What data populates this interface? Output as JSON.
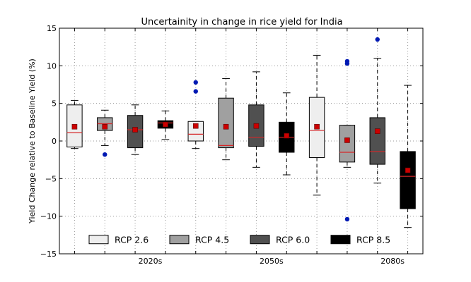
{
  "chart_data": {
    "type": "box",
    "title": "Uncertainity in change in rice yield for India",
    "ylabel": "Yield Change relative to Baseline Yield (%)",
    "ylim": [
      -15,
      15
    ],
    "yticks": [
      -15,
      -10,
      -5,
      0,
      5,
      10,
      15
    ],
    "groups": [
      "2020s",
      "2050s",
      "2080s"
    ],
    "grid": true,
    "legend_position": "bottom",
    "series": [
      {
        "name": "RCP 2.6",
        "color": "#eeeeee"
      },
      {
        "name": "RCP 4.5",
        "color": "#a0a0a0"
      },
      {
        "name": "RCP 6.0",
        "color": "#505050"
      },
      {
        "name": "RCP 8.5",
        "color": "#000000"
      }
    ],
    "boxes": [
      {
        "group": "2020s",
        "series": "RCP 2.6",
        "whislo": -1.0,
        "q1": -0.8,
        "median": 1.1,
        "q3": 4.8,
        "whishi": 5.4,
        "mean": 1.9,
        "fliers": []
      },
      {
        "group": "2020s",
        "series": "RCP 4.5",
        "whislo": -0.6,
        "q1": 1.4,
        "median": 2.3,
        "q3": 3.1,
        "whishi": 4.1,
        "mean": 1.9,
        "fliers": [
          -1.8
        ]
      },
      {
        "group": "2020s",
        "series": "RCP 6.0",
        "whislo": -1.8,
        "q1": -0.9,
        "median": 1.5,
        "q3": 3.4,
        "whishi": 4.8,
        "mean": 1.5,
        "fliers": []
      },
      {
        "group": "2020s",
        "series": "RCP 8.5",
        "whislo": 0.2,
        "q1": 1.7,
        "median": 2.4,
        "q3": 2.7,
        "whishi": 4.0,
        "mean": 2.2,
        "fliers": []
      },
      {
        "group": "2050s",
        "series": "RCP 2.6",
        "whislo": -1.0,
        "q1": 0.0,
        "median": 0.9,
        "q3": 2.6,
        "whishi": 2.6,
        "mean": 2.0,
        "fliers": [
          6.6,
          7.8
        ]
      },
      {
        "group": "2050s",
        "series": "RCP 4.5",
        "whislo": -2.5,
        "q1": -0.9,
        "median": -0.6,
        "q3": 5.7,
        "whishi": 8.3,
        "mean": 1.9,
        "fliers": []
      },
      {
        "group": "2050s",
        "series": "RCP 6.0",
        "whislo": -3.5,
        "q1": -0.7,
        "median": 0.5,
        "q3": 4.8,
        "whishi": 9.2,
        "mean": 2.0,
        "fliers": []
      },
      {
        "group": "2050s",
        "series": "RCP 8.5",
        "whislo": -4.5,
        "q1": -1.5,
        "median": 0.5,
        "q3": 2.5,
        "whishi": 6.4,
        "mean": 0.7,
        "fliers": []
      },
      {
        "group": "2080s",
        "series": "RCP 2.6",
        "whislo": -7.2,
        "q1": -2.2,
        "median": 1.4,
        "q3": 5.8,
        "whishi": 11.4,
        "mean": 1.9,
        "fliers": []
      },
      {
        "group": "2080s",
        "series": "RCP 4.5",
        "whislo": -3.5,
        "q1": -2.8,
        "median": -1.5,
        "q3": 2.1,
        "whishi": 2.1,
        "mean": 0.1,
        "fliers": [
          10.3,
          10.6,
          -10.4
        ]
      },
      {
        "group": "2080s",
        "series": "RCP 6.0",
        "whislo": -5.6,
        "q1": -3.1,
        "median": -1.4,
        "q3": 3.1,
        "whishi": 11.0,
        "mean": 1.3,
        "fliers": [
          13.5
        ]
      },
      {
        "group": "2080s",
        "series": "RCP 8.5",
        "whislo": -11.5,
        "q1": -9.0,
        "median": -4.7,
        "q3": -1.4,
        "whishi": 7.4,
        "mean": -3.9,
        "fliers": []
      }
    ]
  }
}
